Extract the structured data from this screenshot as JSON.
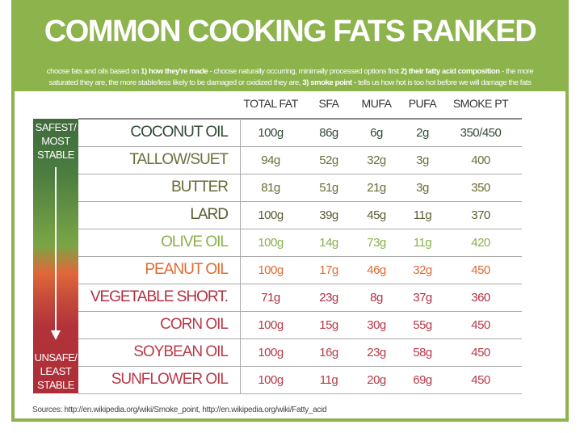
{
  "title": "COMMON COOKING FATS RANKED",
  "subtitle": {
    "p1": "choose fats and oils based on ",
    "b1": "1) how they're made",
    "p2": " - choose naturally occurring, minimally processed options first ",
    "b2": "2) their fatty acid composition",
    "p3": " - the more",
    "p4": "saturated they are, the more stable/less likely to be damaged or oxidized they are, ",
    "b3": "3) smoke point -",
    "p5": " tells us how hot is too hot before we will damage the fats"
  },
  "scale": {
    "top_label": [
      "SAFEST/",
      "MOST",
      "STABLE"
    ],
    "bottom_label": [
      "UNSAFE/",
      "LEAST",
      "STABLE"
    ]
  },
  "columns": [
    "TOTAL FAT",
    "SFA",
    "MUFA",
    "PUFA",
    "SMOKE PT"
  ],
  "rows": [
    {
      "name": "COCONUT OIL",
      "values": [
        "100g",
        "86g",
        "6g",
        "2g",
        "350/450"
      ],
      "color": "#2f4a33"
    },
    {
      "name": "TALLOW/SUET",
      "values": [
        "94g",
        "52g",
        "32g",
        "3g",
        "400"
      ],
      "color": "#6e6e3c"
    },
    {
      "name": "BUTTER",
      "values": [
        "81g",
        "51g",
        "21g",
        "3g",
        "350"
      ],
      "color": "#6b6a33"
    },
    {
      "name": "LARD",
      "values": [
        "100g",
        "39g",
        "45g",
        "11g",
        "370"
      ],
      "color": "#5c5c33"
    },
    {
      "name": "OLIVE OIL",
      "values": [
        "100g",
        "14g",
        "73g",
        "11g",
        "420"
      ],
      "color": "#8ab04c"
    },
    {
      "name": "PEANUT OIL",
      "values": [
        "100g",
        "17g",
        "46g",
        "32g",
        "450"
      ],
      "color": "#e06a30"
    },
    {
      "name": "VEGETABLE SHORT.",
      "values": [
        "71g",
        "23g",
        "8g",
        "37g",
        "360"
      ],
      "color": "#b03040"
    },
    {
      "name": "CORN OIL",
      "values": [
        "100g",
        "15g",
        "30g",
        "55g",
        "450"
      ],
      "color": "#b83a48"
    },
    {
      "name": "SOYBEAN OIL",
      "values": [
        "100g",
        "16g",
        "23g",
        "58g",
        "450"
      ],
      "color": "#b83a48"
    },
    {
      "name": "SUNFLOWER OIL",
      "values": [
        "100g",
        "11g",
        "20g",
        "69g",
        "450"
      ],
      "color": "#b83a48"
    }
  ],
  "sources": "Sources: http://en.wikipedia.org/wiki/Smoke_point, http://en.wikipedia.org/wiki/Fatty_acid"
}
